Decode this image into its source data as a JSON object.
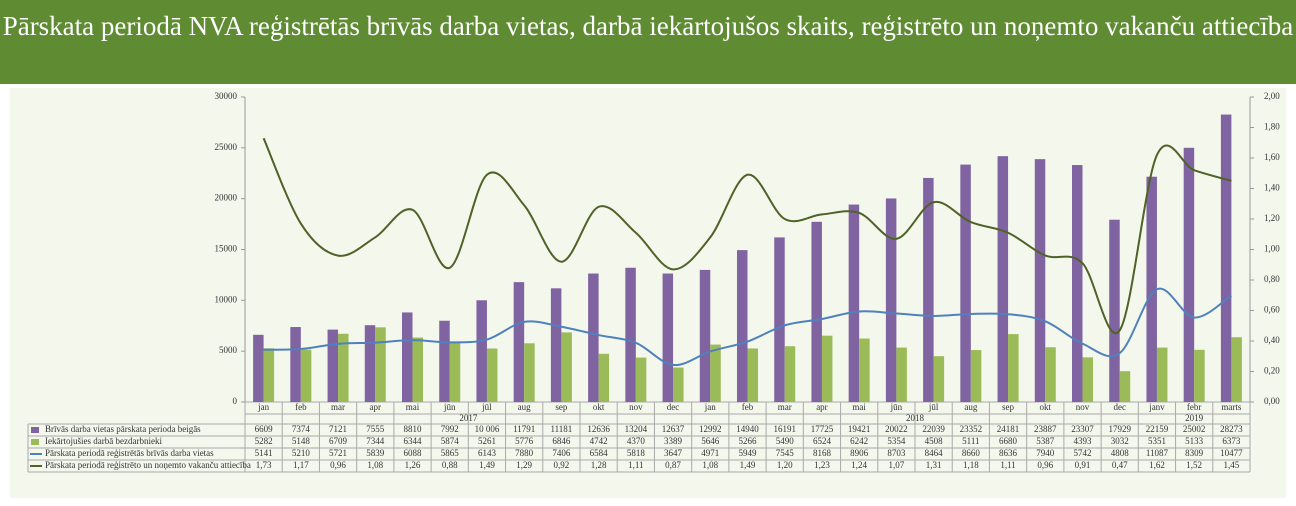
{
  "chart_data": {
    "type": "bar-line",
    "title": "Pārskata periodā NVA reģistrētās brīvās darba vietas, darbā iekārtojušos skaits, reģistrēto un noņemto vakanču attiecība",
    "year_groups": [
      {
        "label": "2017",
        "categories": [
          "jan",
          "feb",
          "mar",
          "apr",
          "mai",
          "jūn",
          "jūl",
          "aug",
          "sep",
          "okt",
          "nov",
          "dec"
        ]
      },
      {
        "label": "2018",
        "categories": [
          "jan",
          "feb",
          "mar",
          "apr",
          "mai",
          "jūn",
          "jūl",
          "aug",
          "sep",
          "okt",
          "nov",
          "dec"
        ]
      },
      {
        "label": "2019",
        "categories": [
          "janv",
          "febr",
          "marts"
        ]
      }
    ],
    "series": [
      {
        "name": "Brīvās darba vietas pārskata perioda beigās",
        "kind": "bar",
        "color": "#8064a2",
        "values": [
          6609,
          7374,
          7121,
          7555,
          8810,
          7992,
          10006,
          11791,
          11181,
          12636,
          13204,
          12637,
          12992,
          14940,
          16191,
          17725,
          19421,
          20022,
          22039,
          23352,
          24181,
          23887,
          23307,
          17929,
          22159,
          25002,
          28273
        ],
        "value_labels": [
          "6609",
          "7374",
          "7121",
          "7555",
          "8810",
          "7992",
          "10 006",
          "11791",
          "11181",
          "12636",
          "13204",
          "12637",
          "12992",
          "14940",
          "16191",
          "17725",
          "19421",
          "20022",
          "22039",
          "23352",
          "24181",
          "23887",
          "23307",
          "17929",
          "22159",
          "25002",
          "28273"
        ]
      },
      {
        "name": "Iekārtojušies darbā bezdarbnieki",
        "kind": "bar",
        "color": "#9bbb59",
        "values": [
          5282,
          5148,
          6709,
          7344,
          6344,
          5874,
          5261,
          5776,
          6846,
          4742,
          4370,
          3389,
          5646,
          5266,
          5490,
          6524,
          6242,
          5354,
          4508,
          5111,
          6680,
          5387,
          4393,
          3032,
          5351,
          5133,
          6373
        ]
      },
      {
        "name": "Pārskata periodā reģistrētās brīvās darba vietas",
        "kind": "line",
        "color": "#4f81bd",
        "values": [
          5141,
          5210,
          5721,
          5839,
          6088,
          5865,
          6143,
          7880,
          7406,
          6584,
          5818,
          3647,
          4971,
          5949,
          7545,
          8168,
          8906,
          8703,
          8464,
          8660,
          8636,
          7940,
          5742,
          4808,
          11087,
          8309,
          10477
        ]
      },
      {
        "name": "Pārskata periodā reģistrēto un noņemto vakanču attiecība",
        "kind": "line",
        "axis": "y2",
        "color": "#4f6228",
        "values": [
          1.73,
          1.17,
          0.96,
          1.08,
          1.26,
          0.88,
          1.49,
          1.29,
          0.92,
          1.28,
          1.11,
          0.87,
          1.08,
          1.49,
          1.2,
          1.23,
          1.24,
          1.07,
          1.31,
          1.18,
          1.11,
          0.96,
          0.91,
          0.47,
          1.62,
          1.52,
          1.45
        ],
        "value_labels": [
          "1,73",
          "1,17",
          "0,96",
          "1,08",
          "1,26",
          "0,88",
          "1,49",
          "1,29",
          "0,92",
          "1,28",
          "1,11",
          "0,87",
          "1,08",
          "1,49",
          "1,20",
          "1,23",
          "1,24",
          "1,07",
          "1,31",
          "1,18",
          "1,11",
          "0,96",
          "0,91",
          "0,47",
          "1,62",
          "1,52",
          "1,45"
        ]
      }
    ],
    "ylim": [
      0,
      30000
    ],
    "yticks": [
      0,
      5000,
      10000,
      15000,
      20000,
      25000,
      30000
    ],
    "y2lim": [
      0,
      2
    ],
    "y2ticks": [
      {
        "value": 0,
        "label": "0,00"
      },
      {
        "value": 0.2,
        "label": "0,20"
      },
      {
        "value": 0.4,
        "label": "0,40"
      },
      {
        "value": 0.6,
        "label": "0,60"
      },
      {
        "value": 0.8,
        "label": "0,80"
      },
      {
        "value": 1,
        "label": "1,00"
      },
      {
        "value": 1.2,
        "label": "1,20"
      },
      {
        "value": 1.4,
        "label": "1,40"
      },
      {
        "value": 1.6,
        "label": "1,60"
      },
      {
        "value": 1.8,
        "label": "1,80"
      },
      {
        "value": 2,
        "label": "2,00"
      }
    ],
    "grid": false
  }
}
